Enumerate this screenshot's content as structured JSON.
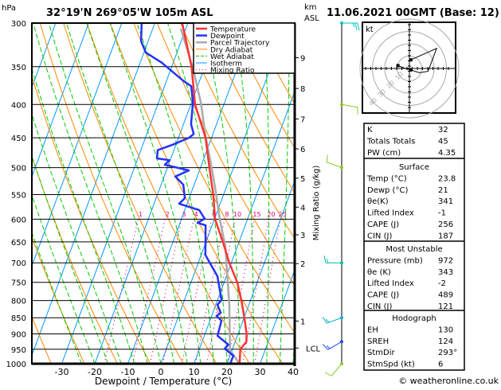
{
  "header": {
    "pressure_unit": "hPa",
    "location": "32°19'N  269°05'W  105m  ASL",
    "km_label": "km",
    "asl_label": "ASL",
    "datetime": "11.06.2021  00GMT  (Base: 12)"
  },
  "legend": [
    {
      "label": "Temperature",
      "color": "#ff3333",
      "style": "solid-thick"
    },
    {
      "label": "Dewpoint",
      "color": "#2233ff",
      "style": "solid-thick"
    },
    {
      "label": "Parcel Trajectory",
      "color": "#aaaaaa",
      "style": "solid-thick"
    },
    {
      "label": "Dry Adiabat",
      "color": "#ff8800",
      "style": "solid"
    },
    {
      "label": "Wet Adiabat",
      "color": "#00cc00",
      "style": "dashed"
    },
    {
      "label": "Isotherm",
      "color": "#0099ff",
      "style": "solid"
    },
    {
      "label": "Mixing Ratio",
      "color": "#e0007a",
      "style": "dotted"
    }
  ],
  "chart_data": {
    "type": "line",
    "subtype": "skew-T log-p",
    "xlabel": "Dewpoint / Temperature (°C)",
    "ylabel": "hPa",
    "y2label": "Mixing Ratio (g/kg)",
    "xlim": [
      -40,
      40
    ],
    "ylim": [
      1000,
      300
    ],
    "pressure_ticks": [
      300,
      350,
      400,
      450,
      500,
      550,
      600,
      650,
      700,
      750,
      800,
      850,
      900,
      950,
      1000
    ],
    "temperature_ticks": [
      -30,
      -20,
      -10,
      0,
      10,
      20,
      30,
      40
    ],
    "km_ticks": [
      {
        "label": "9",
        "p": 339
      },
      {
        "label": "8",
        "p": 378
      },
      {
        "label": "7",
        "p": 421
      },
      {
        "label": "6",
        "p": 468
      },
      {
        "label": "5",
        "p": 519
      },
      {
        "label": "4",
        "p": 575
      },
      {
        "label": "3",
        "p": 634
      },
      {
        "label": "2",
        "p": 702
      },
      {
        "label": "1",
        "p": 860
      },
      {
        "label": "LCL",
        "p": 946
      }
    ],
    "mixing_ratio_lines": [
      "1",
      "2",
      "3",
      "4",
      "6",
      "8",
      "10",
      "15",
      "20",
      "25"
    ],
    "series": [
      {
        "name": "Temperature",
        "color": "#ff3333",
        "points": [
          [
            1000,
            23.8
          ],
          [
            950,
            22.4
          ],
          [
            925,
            23.4
          ],
          [
            900,
            22.6
          ],
          [
            850,
            20.1
          ],
          [
            800,
            17.3
          ],
          [
            750,
            14.0
          ],
          [
            700,
            9.4
          ],
          [
            650,
            5.1
          ],
          [
            600,
            0.2
          ],
          [
            550,
            -3.1
          ],
          [
            500,
            -7.3
          ],
          [
            450,
            -11.8
          ],
          [
            400,
            -18.7
          ],
          [
            350,
            -24.0
          ],
          [
            300,
            -31.7
          ]
        ]
      },
      {
        "name": "Dewpoint",
        "color": "#2233ff",
        "points": [
          [
            1000,
            21.0
          ],
          [
            972,
            21.0
          ],
          [
            948,
            17.6
          ],
          [
            935,
            18.3
          ],
          [
            906,
            14.0
          ],
          [
            859,
            13.5
          ],
          [
            844,
            11.5
          ],
          [
            835,
            12.4
          ],
          [
            812,
            10.5
          ],
          [
            798,
            11.2
          ],
          [
            734,
            7.3
          ],
          [
            681,
            1.3
          ],
          [
            613,
            -2.0
          ],
          [
            608,
            -4.7
          ],
          [
            599,
            -3.0
          ],
          [
            581,
            -5.6
          ],
          [
            568,
            -12.4
          ],
          [
            557,
            -11.3
          ],
          [
            531,
            -13.3
          ],
          [
            516,
            -16.6
          ],
          [
            505,
            -13.2
          ],
          [
            495,
            -21.1
          ],
          [
            487,
            -20.2
          ],
          [
            484,
            -24.2
          ],
          [
            470,
            -24.9
          ],
          [
            461,
            -20.9
          ],
          [
            450,
            -16.8
          ],
          [
            444,
            -15.8
          ],
          [
            429,
            -17.7
          ],
          [
            397,
            -19.6
          ],
          [
            375,
            -21.9
          ],
          [
            368,
            -24.9
          ],
          [
            345,
            -33.5
          ],
          [
            333,
            -39.4
          ],
          [
            320,
            -42.1
          ],
          [
            300,
            -44.0
          ]
        ]
      },
      {
        "name": "Parcel Trajectory",
        "color": "#aaaaaa",
        "points": [
          [
            1000,
            23.8
          ],
          [
            953,
            19.4
          ],
          [
            812,
            14.1
          ],
          [
            661,
            6.4
          ],
          [
            601,
            1.7
          ],
          [
            537,
            -3.3
          ],
          [
            494,
            -7.2
          ],
          [
            448,
            -11.9
          ],
          [
            397,
            -17.2
          ],
          [
            352,
            -23.4
          ],
          [
            306,
            -31.5
          ]
        ]
      }
    ],
    "wind_barbs": [
      {
        "p": 300,
        "dir": 90,
        "kt": 25,
        "color": "#00c0c0"
      },
      {
        "p": 400,
        "dir": 100,
        "kt": 10,
        "color": "#88cc22"
      },
      {
        "p": 500,
        "dir": 290,
        "kt": 10,
        "color": "#88cc22"
      },
      {
        "p": 700,
        "dir": 270,
        "kt": 15,
        "color": "#00c0a0"
      },
      {
        "p": 850,
        "dir": 250,
        "kt": 15,
        "color": "#00b0c0"
      },
      {
        "p": 925,
        "dir": 240,
        "kt": 15,
        "color": "#2244ff"
      },
      {
        "p": 1000,
        "dir": 220,
        "kt": 10,
        "color": "#88cc22"
      }
    ]
  },
  "hodograph": {
    "unit_label": "kt",
    "ring_labels": [
      "10",
      "20",
      "30",
      "40"
    ],
    "path_kt": [
      [
        -8,
        2
      ],
      [
        -3,
        0
      ],
      [
        1,
        -1
      ],
      [
        7,
        -3
      ],
      [
        13,
        -2
      ],
      [
        19,
        14
      ],
      [
        1,
        6
      ]
    ],
    "markers_kt": [
      [
        -8,
        2
      ],
      [
        1,
        -1
      ],
      [
        1,
        6
      ]
    ]
  },
  "indices": {
    "rows": [
      {
        "label": "K",
        "value": "32"
      },
      {
        "label": "Totals Totals",
        "value": "45"
      },
      {
        "label": "PW (cm)",
        "value": "4.35"
      }
    ]
  },
  "surface": {
    "title": "Surface",
    "rows": [
      {
        "label": "Temp (°C)",
        "value": "23.8"
      },
      {
        "label": "Dewp (°C)",
        "value": "21"
      },
      {
        "label": "θe(K)",
        "value": "341"
      },
      {
        "label": "Lifted Index",
        "value": "-1"
      },
      {
        "label": "CAPE (J)",
        "value": "256"
      },
      {
        "label": "CIN (J)",
        "value": "187"
      }
    ]
  },
  "most_unstable": {
    "title": "Most Unstable",
    "rows": [
      {
        "label": "Pressure (mb)",
        "value": "972"
      },
      {
        "label": "θe (K)",
        "value": "343"
      },
      {
        "label": "Lifted Index",
        "value": "-2"
      },
      {
        "label": "CAPE (J)",
        "value": "489"
      },
      {
        "label": "CIN (J)",
        "value": "121"
      }
    ]
  },
  "hodograph_table": {
    "title": "Hodograph",
    "rows": [
      {
        "label": "EH",
        "value": "130"
      },
      {
        "label": "SREH",
        "value": "124"
      },
      {
        "label": "StmDir",
        "value": "293°"
      },
      {
        "label": "StmSpd (kt)",
        "value": "6"
      }
    ]
  },
  "footer": {
    "copyright": "© weatheronline.co.uk"
  }
}
